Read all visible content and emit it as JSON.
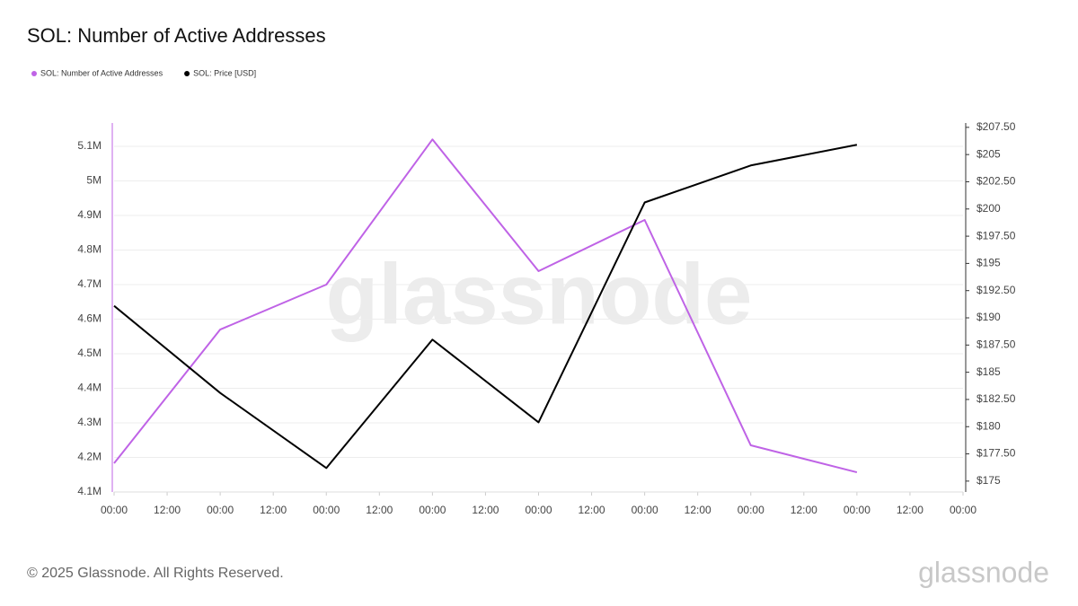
{
  "chart_data": {
    "type": "line",
    "title": "SOL: Number of Active Addresses",
    "legend": "top-left",
    "grid": true,
    "x": [
      0,
      24,
      48,
      72,
      96,
      120,
      144,
      168
    ],
    "xlim": [
      0,
      192
    ],
    "xticks": [
      {
        "value": 0,
        "label": "00:00"
      },
      {
        "value": 12,
        "label": "12:00"
      },
      {
        "value": 24,
        "label": "00:00"
      },
      {
        "value": 36,
        "label": "12:00"
      },
      {
        "value": 48,
        "label": "00:00"
      },
      {
        "value": 60,
        "label": "12:00"
      },
      {
        "value": 72,
        "label": "00:00"
      },
      {
        "value": 84,
        "label": "12:00"
      },
      {
        "value": 96,
        "label": "00:00"
      },
      {
        "value": 108,
        "label": "12:00"
      },
      {
        "value": 120,
        "label": "00:00"
      },
      {
        "value": 132,
        "label": "12:00"
      },
      {
        "value": 144,
        "label": "00:00"
      },
      {
        "value": 156,
        "label": "12:00"
      },
      {
        "value": 168,
        "label": "00:00"
      },
      {
        "value": 180,
        "label": "12:00"
      },
      {
        "value": 192,
        "label": "00:00"
      }
    ],
    "ylim": [
      4100000,
      5167500
    ],
    "yticks": [
      {
        "value": 4100000,
        "label": "4.1M"
      },
      {
        "value": 4200000,
        "label": "4.2M"
      },
      {
        "value": 4300000,
        "label": "4.3M"
      },
      {
        "value": 4400000,
        "label": "4.4M"
      },
      {
        "value": 4500000,
        "label": "4.5M"
      },
      {
        "value": 4600000,
        "label": "4.6M"
      },
      {
        "value": 4700000,
        "label": "4.7M"
      },
      {
        "value": 4800000,
        "label": "4.8M"
      },
      {
        "value": 4900000,
        "label": "4.9M"
      },
      {
        "value": 5000000,
        "label": "5M"
      },
      {
        "value": 5100000,
        "label": "5.1M"
      }
    ],
    "y2lim": [
      174,
      207.9
    ],
    "y2ticks": [
      {
        "value": 175,
        "label": "$175"
      },
      {
        "value": 177.5,
        "label": "$177.50"
      },
      {
        "value": 180,
        "label": "$180"
      },
      {
        "value": 182.5,
        "label": "$182.50"
      },
      {
        "value": 185,
        "label": "$185"
      },
      {
        "value": 187.5,
        "label": "$187.50"
      },
      {
        "value": 190,
        "label": "$190"
      },
      {
        "value": 192.5,
        "label": "$192.50"
      },
      {
        "value": 195,
        "label": "$195"
      },
      {
        "value": 197.5,
        "label": "$197.50"
      },
      {
        "value": 200,
        "label": "$200"
      },
      {
        "value": 202.5,
        "label": "$202.50"
      },
      {
        "value": 205,
        "label": "$205"
      },
      {
        "value": 207.5,
        "label": "$207.50"
      }
    ],
    "series": [
      {
        "name": "SOL: Number of Active Addresses",
        "color": "#bf63e6",
        "values": [
          4183000,
          4570000,
          4700000,
          5120000,
          4739000,
          4887000,
          4235000,
          4157000
        ]
      },
      {
        "name": "SOL: Price [USD]",
        "color": "#000000",
        "axis": "y2",
        "values": [
          191.1,
          183.1,
          176.2,
          188.0,
          180.4,
          200.6,
          204.0,
          205.9
        ]
      }
    ]
  },
  "watermark": "glassnode",
  "footer": {
    "copyright": "© 2025 Glassnode. All Rights Reserved.",
    "logo": "glassnode"
  }
}
